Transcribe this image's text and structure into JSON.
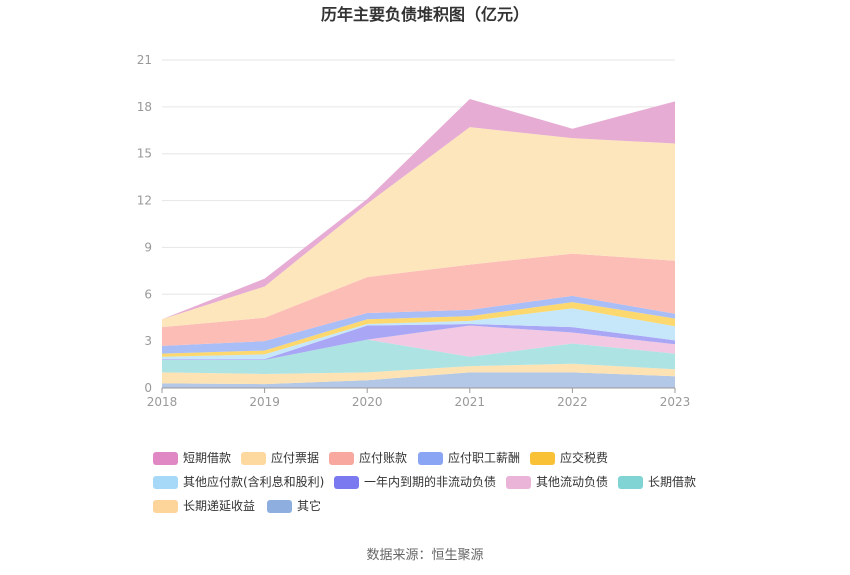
{
  "chart_data": {
    "type": "area",
    "stacked": true,
    "title": "历年主要负债堆积图（亿元）",
    "x": [
      "2018",
      "2019",
      "2020",
      "2021",
      "2022",
      "2023"
    ],
    "ylim": [
      0,
      21
    ],
    "yticks": [
      0,
      3,
      6,
      9,
      12,
      15,
      18,
      21
    ],
    "grid": true,
    "legend_position": "bottom",
    "source": "数据来源：恒生聚源",
    "series": [
      {
        "name": "其它",
        "color": "#b3c7e6",
        "legend_color": "#8eaee0",
        "values": [
          0.3,
          0.25,
          0.5,
          1.0,
          1.0,
          0.75
        ]
      },
      {
        "name": "长期递延收益",
        "color": "#fde3b3",
        "legend_color": "#fdd59a",
        "values": [
          0.7,
          0.65,
          0.5,
          0.4,
          0.55,
          0.45
        ]
      },
      {
        "name": "长期借款",
        "color": "#aee3e3",
        "legend_color": "#80d4d4",
        "values": [
          0.8,
          0.9,
          2.1,
          0.6,
          1.3,
          1.0
        ]
      },
      {
        "name": "其他流动负债",
        "color": "#f2c8e2",
        "legend_color": "#e9b4d8",
        "values": [
          0.0,
          0.0,
          0.0,
          2.0,
          0.7,
          0.6
        ]
      },
      {
        "name": "一年内到期的非流动负债",
        "color": "#a8a6f5",
        "legend_color": "#7b79f0",
        "values": [
          0.05,
          0.05,
          0.9,
          0.1,
          0.35,
          0.25
        ]
      },
      {
        "name": "其他应付款(含利息和股利)",
        "color": "#c6e6fa",
        "legend_color": "#a6d8f7",
        "values": [
          0.15,
          0.3,
          0.1,
          0.2,
          1.2,
          0.9
        ]
      },
      {
        "name": "应交税费",
        "color": "#fcd86e",
        "legend_color": "#f9c236",
        "values": [
          0.2,
          0.25,
          0.3,
          0.3,
          0.4,
          0.5
        ]
      },
      {
        "name": "应付职工薪酬",
        "color": "#a9bdf7",
        "legend_color": "#8aa5f4",
        "values": [
          0.5,
          0.6,
          0.4,
          0.4,
          0.4,
          0.3
        ]
      },
      {
        "name": "应付账款",
        "color": "#fdbdb7",
        "legend_color": "#f8a89f",
        "values": [
          1.2,
          1.5,
          2.3,
          2.9,
          2.7,
          3.4
        ]
      },
      {
        "name": "应付票据",
        "color": "#fde6bc",
        "legend_color": "#fdd9a0",
        "values": [
          0.5,
          2.0,
          4.7,
          8.8,
          7.4,
          7.5
        ]
      },
      {
        "name": "短期借款",
        "color": "#e6acd3",
        "legend_color": "#df88c4",
        "values": [
          0.0,
          0.5,
          0.3,
          1.8,
          0.6,
          2.7
        ]
      }
    ],
    "legend_order": [
      "短期借款",
      "应付票据",
      "应付账款",
      "应付职工薪酬",
      "应交税费",
      "其他应付款(含利息和股利)",
      "一年内到期的非流动负债",
      "其他流动负债",
      "长期借款",
      "长期递延收益",
      "其它"
    ]
  }
}
